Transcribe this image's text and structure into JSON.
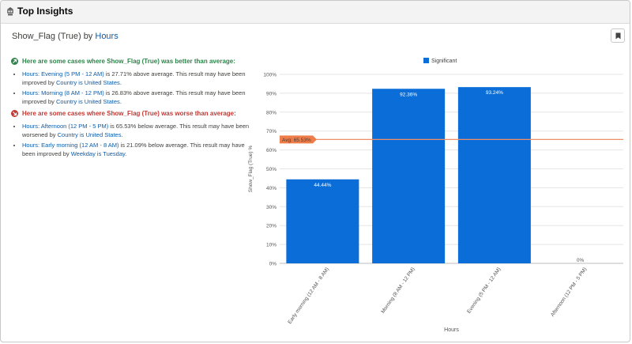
{
  "window": {
    "title": "Top Insights"
  },
  "header": {
    "metric": "Show_Flag (True)",
    "by": "by",
    "dimension": "Hours"
  },
  "better": {
    "heading": "Here are some cases where Show_Flag (True) was better than average:",
    "items": [
      {
        "link": "Hours: Evening (5 PM - 12 AM)",
        "text1": " is 27.71% above average. This result may have been improved by ",
        "link2": "Country is United States",
        "text2": "."
      },
      {
        "link": "Hours: Morning (8 AM - 12 PM)",
        "text1": " is 26.83% above average. This result may have been improved by ",
        "link2": "Country is United States",
        "text2": "."
      }
    ]
  },
  "worse": {
    "heading": "Here are some cases where Show_Flag (True) was worse than average:",
    "items": [
      {
        "link": "Hours: Afternoon (12 PM - 5 PM)",
        "text1": " is 65.53% below average. This result may have been worsened by ",
        "link2": "Country is United States",
        "text2": "."
      },
      {
        "link": "Hours: Early morning (12 AM - 8 AM)",
        "text1": " is 21.09% below average. This result may have been improved by ",
        "link2": "Weekday is Tuesday",
        "text2": "."
      }
    ]
  },
  "icons": {
    "app": "robot-icon",
    "bookmark": "bookmark-icon",
    "trend_up": "arrow-up-right-icon",
    "trend_down": "arrow-down-right-icon"
  },
  "colors": {
    "bar": "#0b6ed8",
    "avg_line": "#f08e68",
    "good": "#2e844a",
    "bad": "#c23934",
    "link": "#0b5cab"
  },
  "chart_data": {
    "type": "bar",
    "categories": [
      "Early morning (12 AM - 8 AM)",
      "Morning (8 AM - 12 PM)",
      "Evening (5 PM - 12 AM)",
      "Afternoon (12 PM - 5 PM)"
    ],
    "series": [
      {
        "name": "Significant",
        "values": [
          44.44,
          92.36,
          93.24,
          0
        ]
      }
    ],
    "value_labels": [
      "44.44%",
      "92.36%",
      "93.24%",
      "0%"
    ],
    "xlabel": "Hours",
    "ylabel": "Show_Flag (True) %",
    "ylim": [
      0,
      100
    ],
    "yticks": [
      "0%",
      "10%",
      "20%",
      "30%",
      "40%",
      "50%",
      "60%",
      "70%",
      "80%",
      "90%",
      "100%"
    ],
    "average": {
      "value": 65.53,
      "label": "Avg: 65.53%"
    },
    "legend_position": "top-center",
    "grid": true
  }
}
